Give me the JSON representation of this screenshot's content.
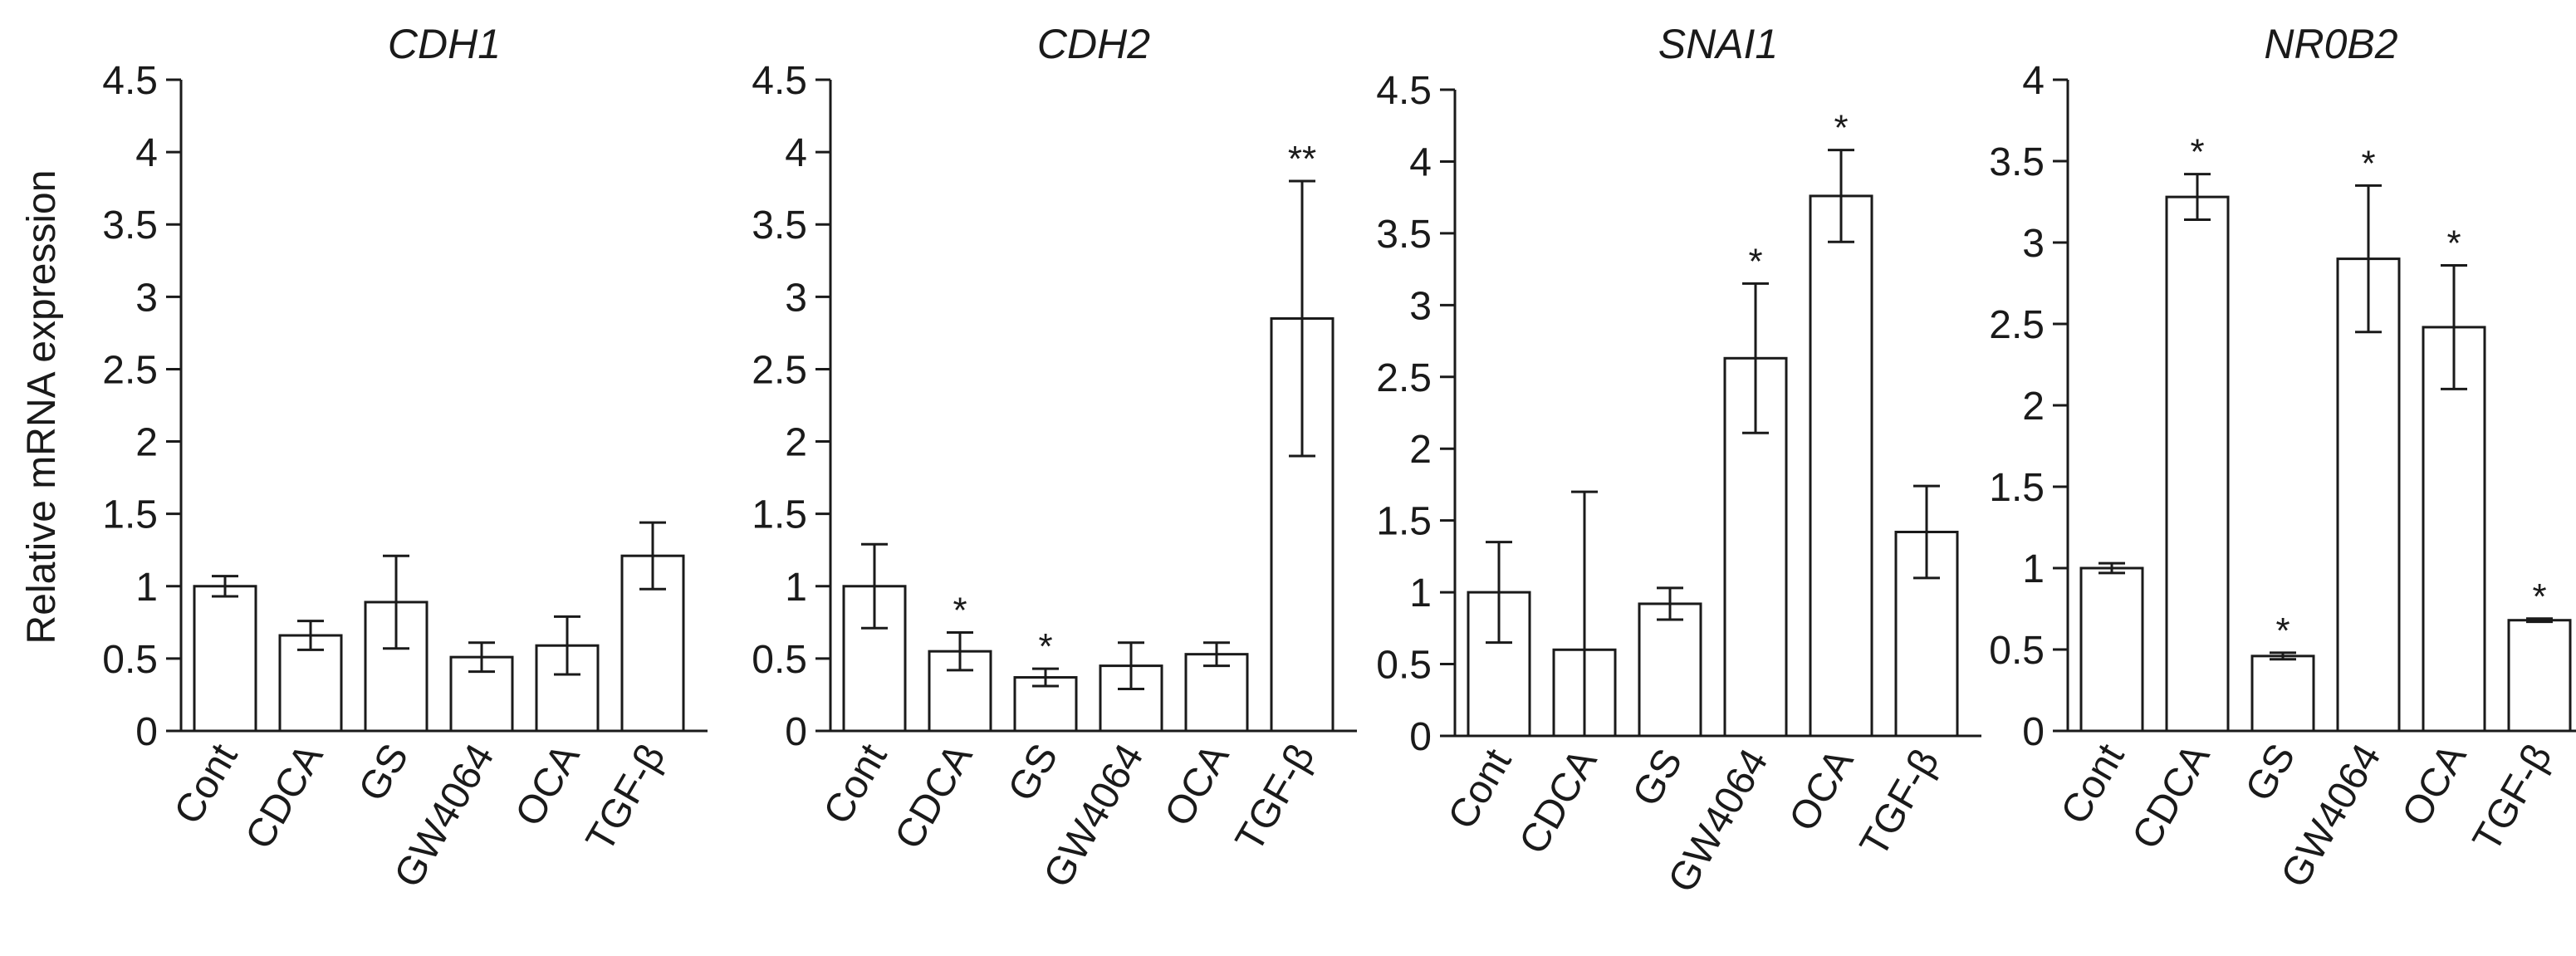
{
  "chart_data": [
    {
      "type": "bar",
      "title": "CDH1",
      "ylabel": "Relative mRNA expression",
      "ylim": [
        0,
        4.5
      ],
      "yticks": [
        "0",
        "0.5",
        "1",
        "1.5",
        "2",
        "2.5",
        "3",
        "3.5",
        "4",
        "4.5"
      ],
      "categories": [
        "Cont",
        "CDCA",
        "GS",
        "GW4064",
        "OCA",
        "TGF-β"
      ],
      "values": [
        1.0,
        0.66,
        0.89,
        0.51,
        0.59,
        1.21
      ],
      "errors": [
        0.07,
        0.1,
        0.32,
        0.1,
        0.2,
        0.23
      ],
      "annotations": [
        "",
        "",
        "",
        "",
        "",
        ""
      ]
    },
    {
      "type": "bar",
      "title": "CDH2",
      "ylabel": "",
      "ylim": [
        0,
        4.5
      ],
      "yticks": [
        "0",
        "0.5",
        "1",
        "1.5",
        "2",
        "2.5",
        "3",
        "3.5",
        "4",
        "4.5"
      ],
      "categories": [
        "Cont",
        "CDCA",
        "GS",
        "GW4064",
        "OCA",
        "TGF-β"
      ],
      "values": [
        1.0,
        0.55,
        0.37,
        0.45,
        0.53,
        2.85
      ],
      "errors": [
        0.29,
        0.13,
        0.06,
        0.16,
        0.08,
        0.95
      ],
      "annotations": [
        "",
        "*",
        "*",
        "",
        "",
        "**"
      ]
    },
    {
      "type": "bar",
      "title": "SNAI1",
      "ylabel": "",
      "ylim": [
        0,
        4.5
      ],
      "yticks": [
        "0",
        "0.5",
        "1",
        "1.5",
        "2",
        "2.5",
        "3",
        "3.5",
        "4",
        "4.5"
      ],
      "categories": [
        "Cont",
        "CDCA",
        "GS",
        "GW4064",
        "OCA",
        "TGF-β"
      ],
      "values": [
        1.0,
        0.6,
        0.92,
        2.63,
        3.76,
        1.42
      ],
      "errors": [
        0.35,
        1.1,
        0.11,
        0.52,
        0.32,
        0.32
      ],
      "annotations": [
        "",
        "",
        "",
        "*",
        "*",
        ""
      ]
    },
    {
      "type": "bar",
      "title": "NR0B2",
      "ylabel": "",
      "ylim": [
        0,
        4
      ],
      "yticks": [
        "0",
        "0.5",
        "1",
        "1.5",
        "2",
        "2.5",
        "3",
        "3.5",
        "4"
      ],
      "categories": [
        "Cont",
        "CDCA",
        "GS",
        "GW4064",
        "OCA",
        "TGF-β"
      ],
      "values": [
        1.0,
        3.28,
        0.46,
        2.9,
        2.48,
        0.68
      ],
      "errors": [
        0.03,
        0.14,
        0.02,
        0.45,
        0.38,
        0.01
      ],
      "annotations": [
        "",
        "*",
        "*",
        "*",
        "*",
        "*"
      ]
    }
  ]
}
